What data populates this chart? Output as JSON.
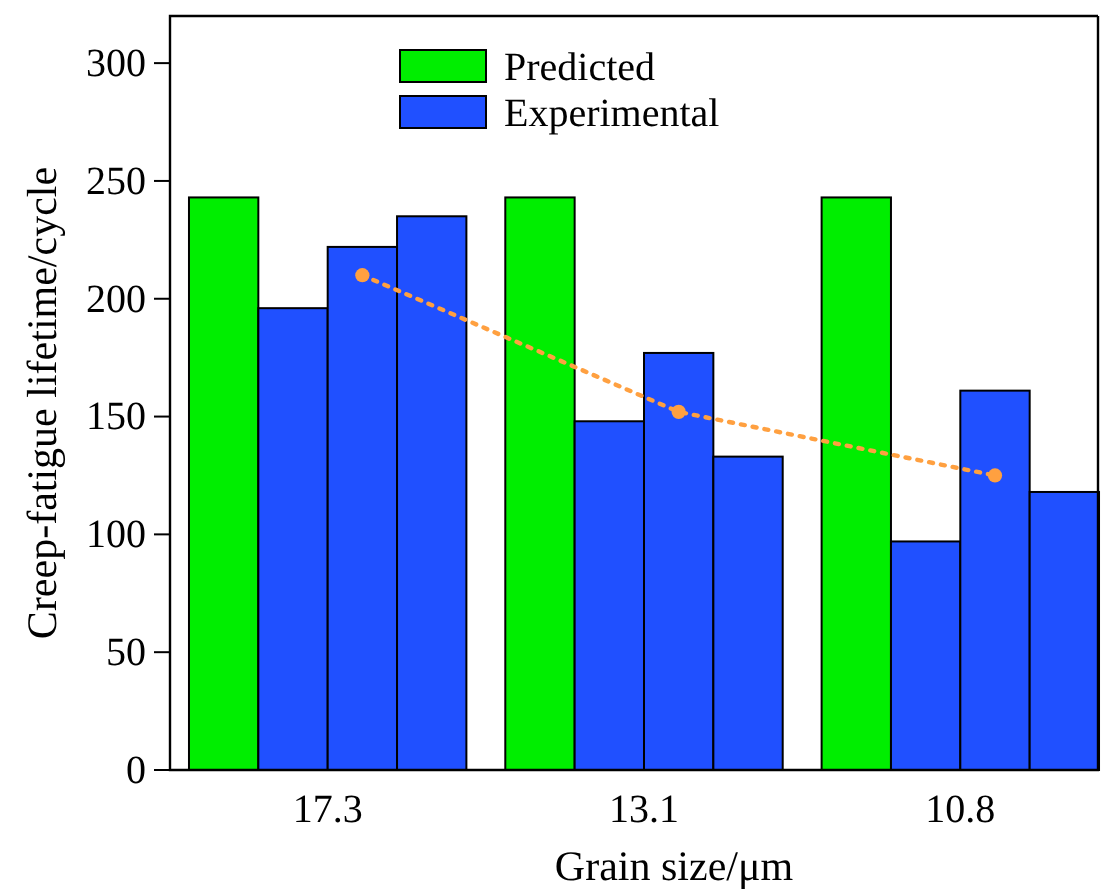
{
  "chart_data": {
    "type": "bar",
    "xlabel": "Grain size/μm",
    "ylabel": "Creep-fatigue lifetime/cycle",
    "categories": [
      "17.3",
      "13.1",
      "10.8"
    ],
    "series": [
      {
        "name": "Predicted",
        "color": "#00ee00",
        "values": [
          243,
          243,
          243
        ]
      },
      {
        "name": "Experimental",
        "color": "#2050ff",
        "values": [
          196,
          148,
          97
        ]
      },
      {
        "color": "#2050ff",
        "values": [
          222,
          177,
          161
        ]
      },
      {
        "color": "#2050ff",
        "values": [
          235,
          133,
          118
        ]
      },
      {
        "type": "line",
        "color": "#ffa040",
        "values": [
          210,
          152,
          125
        ],
        "marker": "circle",
        "line_style": "dotted"
      }
    ],
    "ylim": [
      0,
      320
    ],
    "yticks": [
      0,
      50,
      100,
      150,
      200,
      250,
      300
    ],
    "grid": false,
    "legend": "top"
  }
}
